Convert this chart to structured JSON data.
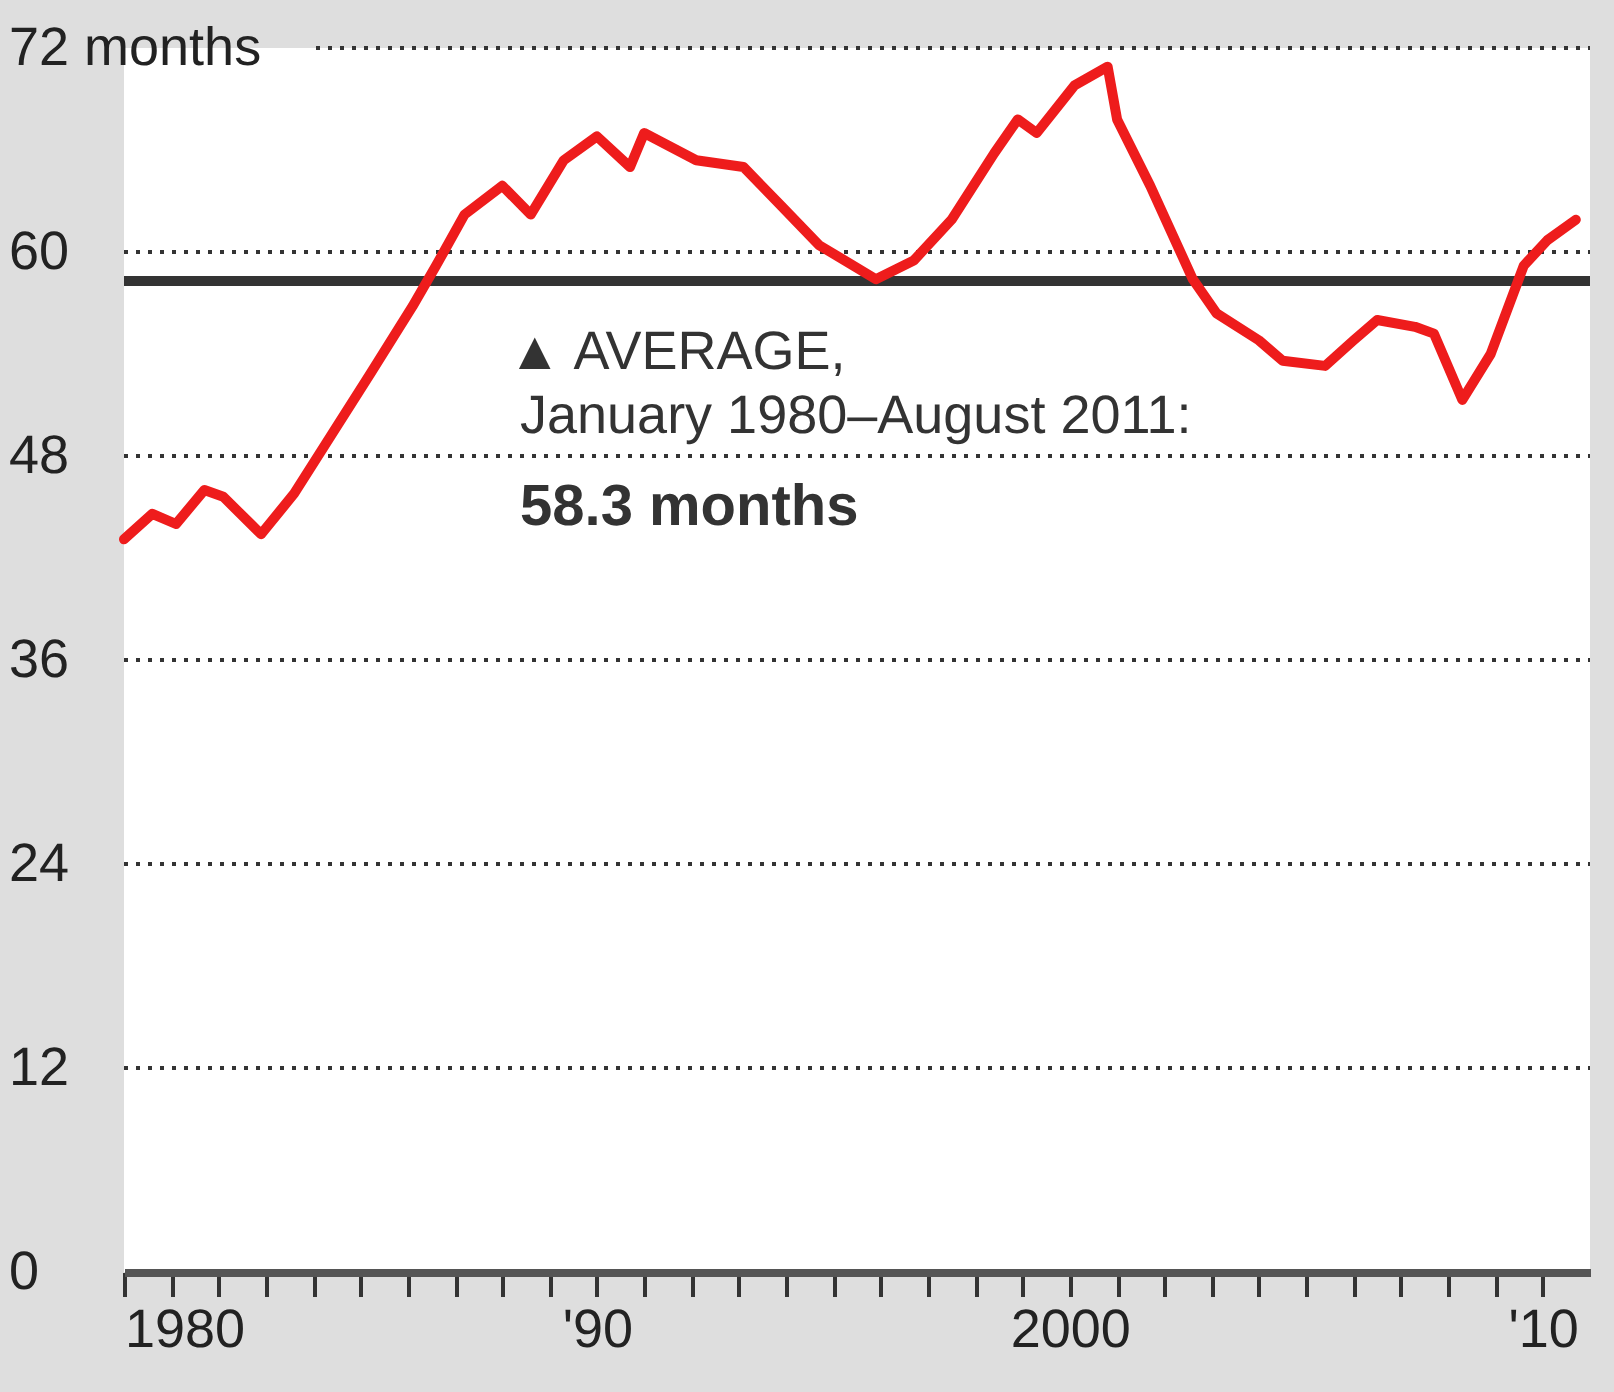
{
  "chart_data": {
    "type": "line",
    "x": [
      1980.0,
      1980.6,
      1981.1,
      1981.7,
      1982.1,
      1982.9,
      1983.6,
      1984.4,
      1985.2,
      1986.1,
      1986.6,
      1987.2,
      1988.0,
      1988.6,
      1989.3,
      1990.0,
      1990.7,
      1991.0,
      1992.1,
      1993.1,
      1993.9,
      1994.7,
      1995.9,
      1996.7,
      1997.5,
      1998.4,
      1998.9,
      1999.3,
      2000.1,
      2000.8,
      2001.0,
      2001.7,
      2002.6,
      2003.1,
      2004.0,
      2004.5,
      2005.4,
      2006.0,
      2006.5,
      2007.3,
      2007.7,
      2008.3,
      2008.9,
      2009.6,
      2010.1,
      2010.7
    ],
    "series": [
      {
        "color": "#ee1c1c",
        "values": [
          43.1,
          44.6,
          44.0,
          46.0,
          45.6,
          43.4,
          45.8,
          49.3,
          52.8,
          56.8,
          59.2,
          62.2,
          63.9,
          62.2,
          65.4,
          66.8,
          65.0,
          67.0,
          65.4,
          65.0,
          62.7,
          60.4,
          58.4,
          59.5,
          61.9,
          65.8,
          67.8,
          67.0,
          69.8,
          70.9,
          67.8,
          63.9,
          58.4,
          56.4,
          54.8,
          53.6,
          53.3,
          54.8,
          56.0,
          55.6,
          55.2,
          51.3,
          54.0,
          59.2,
          60.7,
          61.9
        ]
      }
    ],
    "xlim": [
      1980,
      2011
    ],
    "xticks": [
      {
        "value": 1980,
        "label": "1980"
      },
      {
        "value": 1981,
        "label": null
      },
      {
        "value": 1982,
        "label": null
      },
      {
        "value": 1983,
        "label": null
      },
      {
        "value": 1984,
        "label": null
      },
      {
        "value": 1985,
        "label": null
      },
      {
        "value": 1986,
        "label": null
      },
      {
        "value": 1987,
        "label": null
      },
      {
        "value": 1988,
        "label": null
      },
      {
        "value": 1989,
        "label": null
      },
      {
        "value": 1990,
        "label": "'90"
      },
      {
        "value": 1991,
        "label": null
      },
      {
        "value": 1992,
        "label": null
      },
      {
        "value": 1993,
        "label": null
      },
      {
        "value": 1994,
        "label": null
      },
      {
        "value": 1995,
        "label": null
      },
      {
        "value": 1996,
        "label": null
      },
      {
        "value": 1997,
        "label": null
      },
      {
        "value": 1998,
        "label": null
      },
      {
        "value": 1999,
        "label": null
      },
      {
        "value": 2000,
        "label": "2000"
      },
      {
        "value": 2001,
        "label": null
      },
      {
        "value": 2002,
        "label": null
      },
      {
        "value": 2003,
        "label": null
      },
      {
        "value": 2004,
        "label": null
      },
      {
        "value": 2005,
        "label": null
      },
      {
        "value": 2006,
        "label": null
      },
      {
        "value": 2007,
        "label": null
      },
      {
        "value": 2008,
        "label": null
      },
      {
        "value": 2009,
        "label": null
      },
      {
        "value": 2010,
        "label": "'10"
      }
    ],
    "ylim": [
      0,
      72
    ],
    "yticks": [
      0,
      12,
      24,
      36,
      48,
      60,
      {
        "value": 72,
        "label": "72 months"
      }
    ],
    "grid": "y",
    "ref_lines": [
      {
        "axis": "y",
        "value": 58.3,
        "color": "#333333",
        "label": "▲ AVERAGE,\nJanuary 1980–August 2011:\n58.3 months"
      }
    ]
  }
}
